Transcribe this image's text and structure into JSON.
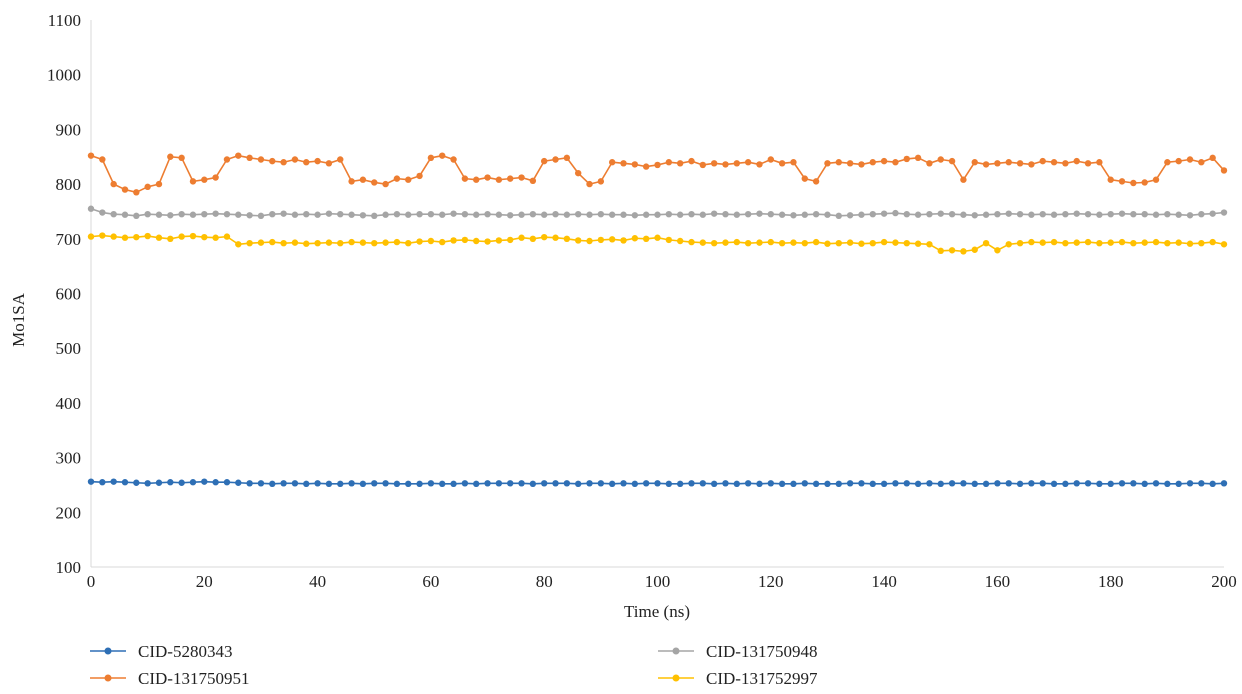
{
  "chart_data": {
    "type": "line",
    "xlabel": "Time (ns)",
    "ylabel": "Mo1SA",
    "xlim": [
      0,
      200
    ],
    "ylim": [
      100,
      1100
    ],
    "x_ticks": [
      "0",
      "20",
      "40",
      "60",
      "80",
      "100",
      "120",
      "140",
      "160",
      "180",
      "200"
    ],
    "y_ticks": [
      "100",
      "200",
      "300",
      "400",
      "500",
      "600",
      "700",
      "800",
      "900",
      "1000",
      "1100"
    ],
    "grid": false,
    "legend_position": "bottom",
    "x": [
      0,
      2,
      4,
      6,
      8,
      10,
      12,
      14,
      16,
      18,
      20,
      22,
      24,
      26,
      28,
      30,
      32,
      34,
      36,
      38,
      40,
      42,
      44,
      46,
      48,
      50,
      52,
      54,
      56,
      58,
      60,
      62,
      64,
      66,
      68,
      70,
      72,
      74,
      76,
      78,
      80,
      82,
      84,
      86,
      88,
      90,
      92,
      94,
      96,
      98,
      100,
      102,
      104,
      106,
      108,
      110,
      112,
      114,
      116,
      118,
      120,
      122,
      124,
      126,
      128,
      130,
      132,
      134,
      136,
      138,
      140,
      142,
      144,
      146,
      148,
      150,
      152,
      154,
      156,
      158,
      160,
      162,
      164,
      166,
      168,
      170,
      172,
      174,
      176,
      178,
      180,
      182,
      184,
      186,
      188,
      190,
      192,
      194,
      196,
      198,
      200
    ],
    "series": [
      {
        "name": "CID-5280343",
        "color": "#2e6fb5",
        "values": [
          256,
          255,
          256,
          255,
          254,
          253,
          254,
          255,
          254,
          255,
          256,
          255,
          255,
          254,
          253,
          253,
          252,
          253,
          253,
          252,
          253,
          252,
          252,
          253,
          252,
          253,
          253,
          252,
          252,
          252,
          253,
          252,
          252,
          253,
          252,
          253,
          253,
          253,
          253,
          252,
          253,
          253,
          253,
          252,
          253,
          253,
          252,
          253,
          252,
          253,
          253,
          252,
          252,
          253,
          253,
          252,
          253,
          252,
          253,
          252,
          253,
          252,
          252,
          253,
          252,
          252,
          252,
          253,
          253,
          252,
          252,
          253,
          253,
          252,
          253,
          252,
          253,
          253,
          252,
          252,
          253,
          253,
          252,
          253,
          253,
          252,
          252,
          253,
          253,
          252,
          252,
          253,
          253,
          252,
          253,
          252,
          252,
          253,
          253,
          252,
          253
        ]
      },
      {
        "name": "CID-131750948",
        "color": "#a5a5a5",
        "values": [
          755,
          748,
          745,
          744,
          742,
          745,
          744,
          743,
          745,
          744,
          745,
          746,
          745,
          744,
          743,
          742,
          745,
          746,
          744,
          745,
          744,
          746,
          745,
          744,
          743,
          742,
          744,
          745,
          744,
          745,
          745,
          744,
          746,
          745,
          744,
          745,
          744,
          743,
          744,
          745,
          744,
          745,
          744,
          745,
          744,
          745,
          744,
          744,
          743,
          744,
          744,
          745,
          744,
          745,
          744,
          746,
          745,
          744,
          745,
          746,
          745,
          744,
          743,
          744,
          745,
          744,
          742,
          743,
          744,
          745,
          746,
          747,
          745,
          744,
          745,
          746,
          745,
          744,
          743,
          744,
          745,
          746,
          745,
          744,
          745,
          744,
          745,
          746,
          745,
          744,
          745,
          746,
          745,
          745,
          744,
          745,
          744,
          743,
          745,
          746,
          748
        ]
      },
      {
        "name": "CID-131750951",
        "color": "#ed7d31",
        "values": [
          852,
          845,
          800,
          790,
          785,
          795,
          800,
          850,
          848,
          805,
          808,
          812,
          845,
          852,
          848,
          845,
          842,
          840,
          845,
          840,
          842,
          838,
          845,
          805,
          808,
          803,
          800,
          810,
          808,
          815,
          848,
          852,
          845,
          810,
          808,
          812,
          808,
          810,
          812,
          806,
          842,
          845,
          848,
          820,
          800,
          805,
          840,
          838,
          836,
          832,
          835,
          840,
          838,
          842,
          835,
          838,
          836,
          838,
          840,
          836,
          845,
          838,
          840,
          810,
          805,
          838,
          840,
          838,
          836,
          840,
          842,
          840,
          846,
          848,
          838,
          845,
          842,
          808,
          840,
          836,
          838,
          840,
          838,
          836,
          842,
          840,
          838,
          842,
          838,
          840,
          808,
          805,
          802,
          803,
          808,
          840,
          842,
          845,
          840,
          848,
          825
        ]
      },
      {
        "name": "CID-131752997",
        "color": "#ffc000",
        "values": [
          704,
          706,
          704,
          702,
          703,
          705,
          702,
          700,
          704,
          705,
          703,
          702,
          704,
          690,
          692,
          693,
          694,
          692,
          693,
          691,
          692,
          693,
          692,
          694,
          693,
          692,
          693,
          694,
          692,
          695,
          696,
          694,
          697,
          698,
          696,
          695,
          697,
          698,
          702,
          700,
          703,
          702,
          700,
          697,
          696,
          698,
          699,
          697,
          701,
          700,
          702,
          698,
          696,
          694,
          693,
          692,
          693,
          694,
          692,
          693,
          694,
          692,
          693,
          692,
          694,
          691,
          692,
          693,
          691,
          692,
          694,
          693,
          692,
          691,
          690,
          678,
          679,
          677,
          680,
          692,
          679,
          690,
          692,
          694,
          693,
          694,
          692,
          693,
          694,
          692,
          693,
          694,
          692,
          693,
          694,
          692,
          693,
          691,
          692,
          694,
          690
        ]
      }
    ]
  }
}
